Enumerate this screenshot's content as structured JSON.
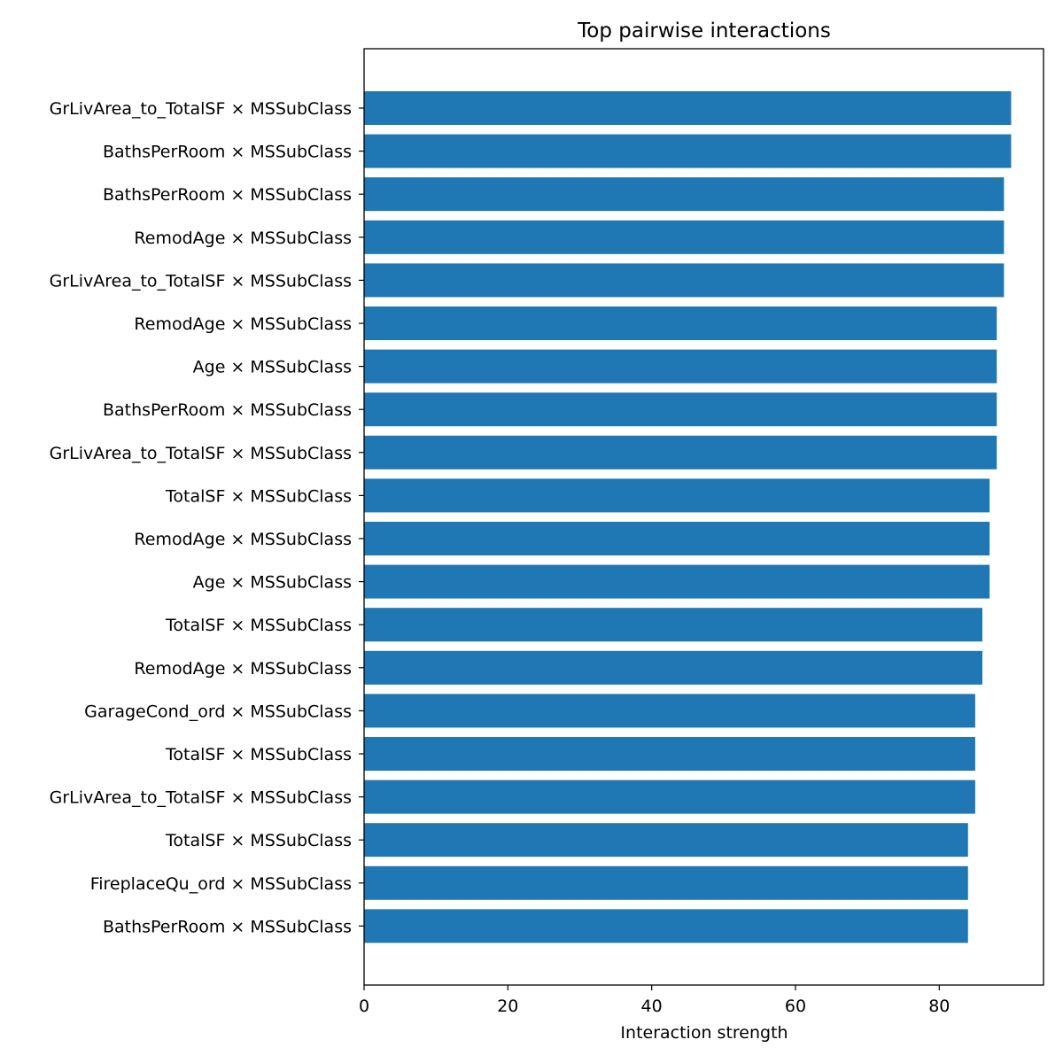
{
  "chart_data": {
    "type": "bar",
    "orientation": "horizontal",
    "title": "Top pairwise interactions",
    "xlabel": "Interaction strength",
    "ylabel": "",
    "xlim": [
      0,
      94.5
    ],
    "xticks": [
      0,
      20,
      40,
      60,
      80
    ],
    "grid": false,
    "legend": "none",
    "bar_color": "#1f77b4",
    "categories": [
      "GrLivArea_to_TotalSF × MSSubClass",
      "BathsPerRoom × MSSubClass",
      "BathsPerRoom × MSSubClass",
      "RemodAge × MSSubClass",
      "GrLivArea_to_TotalSF × MSSubClass",
      "RemodAge × MSSubClass",
      "Age × MSSubClass",
      "BathsPerRoom × MSSubClass",
      "GrLivArea_to_TotalSF × MSSubClass",
      "TotalSF × MSSubClass",
      "RemodAge × MSSubClass",
      "Age × MSSubClass",
      "TotalSF × MSSubClass",
      "RemodAge × MSSubClass",
      "GarageCond_ord × MSSubClass",
      "TotalSF × MSSubClass",
      "GrLivArea_to_TotalSF × MSSubClass",
      "TotalSF × MSSubClass",
      "FireplaceQu_ord × MSSubClass",
      "BathsPerRoom × MSSubClass"
    ],
    "values": [
      90,
      90,
      89,
      89,
      89,
      88,
      88,
      88,
      88,
      87,
      87,
      87,
      86,
      86,
      85,
      85,
      85,
      84,
      84,
      84
    ]
  }
}
